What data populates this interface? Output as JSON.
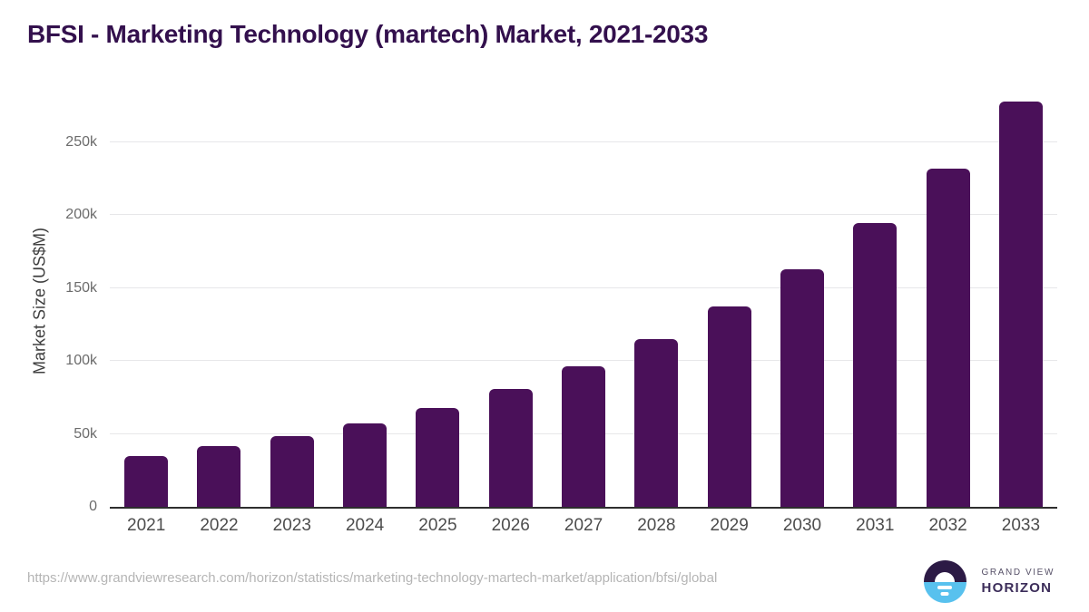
{
  "chart_data": {
    "type": "bar",
    "title": "BFSI - Marketing Technology (martech) Market, 2021-2033",
    "ylabel": "Market Size (US$M)",
    "categories": [
      "2021",
      "2022",
      "2023",
      "2024",
      "2025",
      "2026",
      "2027",
      "2028",
      "2029",
      "2030",
      "2031",
      "2032",
      "2033"
    ],
    "values": [
      35000,
      41500,
      48500,
      57000,
      68000,
      81000,
      96500,
      115000,
      137000,
      163000,
      194500,
      232000,
      277500
    ],
    "yticks": {
      "values": [
        0,
        50000,
        100000,
        150000,
        200000,
        250000
      ],
      "labels": [
        "0",
        "50k",
        "100k",
        "150k",
        "200k",
        "250k"
      ]
    },
    "ylim": [
      0,
      282000
    ],
    "grid": true,
    "legend": "none",
    "bar_color": "#4a1059",
    "title_color": "#33104d"
  },
  "footer": {
    "source_url": "https://www.grandviewresearch.com/horizon/statistics/marketing-technology-martech-market/application/bfsi/global",
    "logo": {
      "line1": "GRAND VIEW",
      "line2": "HORIZON",
      "icon_top_color": "#2c1a45",
      "icon_bottom_color": "#58c1ee"
    }
  }
}
